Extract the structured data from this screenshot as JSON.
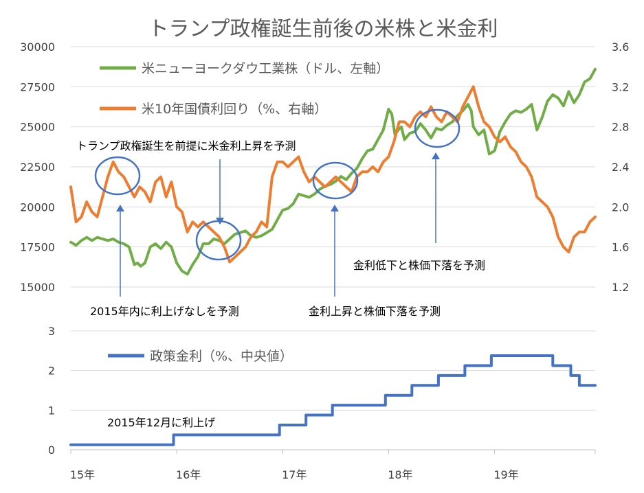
{
  "title": "トランプ政権誕生前後の米株と米金利",
  "colors": {
    "dow": "#70ad47",
    "yield": "#ed7d31",
    "policy": "#4472c4",
    "annotation": "#4472c4",
    "grid": "#d9d9d9",
    "text": "#404040"
  },
  "x_axis": {
    "min": 2015.0,
    "max": 2019.95,
    "tick_values": [
      2015,
      2016,
      2017,
      2018,
      2019
    ],
    "tick_labels": [
      "15年",
      "16年",
      "17年",
      "18年",
      "19年"
    ]
  },
  "top_chart": {
    "left_axis": {
      "min": 15000,
      "max": 30000,
      "ticks": [
        15000,
        17500,
        20000,
        22500,
        25000,
        27500,
        30000
      ],
      "tick_labels": [
        "15000",
        "17500",
        "20000",
        "22500",
        "25000",
        "27500",
        "30000"
      ]
    },
    "right_axis": {
      "min": 1.2,
      "max": 3.6,
      "ticks": [
        1.2,
        1.6,
        2.0,
        2.4,
        2.8,
        3.2,
        3.6
      ],
      "tick_labels": [
        "1.2",
        "1.6",
        "2.0",
        "2.4",
        "2.8",
        "3.2",
        "3.6"
      ]
    },
    "legend": [
      {
        "key": "dow",
        "label": "米ニューヨークダウ工業株（ドル、左軸）"
      },
      {
        "key": "yield",
        "label": "米10年国債利回り（%、右軸）"
      }
    ],
    "annotations": {
      "top_text": "トランプ政権誕生を前提に米金利上昇を予測",
      "left_bottom": "2015年内に利上げなしを予測",
      "mid_bottom": "金利上昇と株価下落を予測",
      "right_text": "金利低下と株価下落を予測"
    }
  },
  "bottom_chart": {
    "axis": {
      "min": 0,
      "max": 3,
      "ticks": [
        0,
        1,
        2,
        3
      ],
      "tick_labels": [
        "0",
        "1",
        "2",
        "3"
      ]
    },
    "legend": {
      "label": "政策金利（%、中央値）"
    },
    "annotation": "2015年12月に利上げ"
  },
  "chart_data": [
    {
      "type": "line",
      "title": "トランプ政権誕生前後の米株と米金利",
      "x_unit": "year",
      "grid": true,
      "legend_placement": "top-left",
      "series": [
        {
          "name": "米ニューヨークダウ工業株（ドル、左軸）",
          "axis": "left",
          "x": [
            2015.0,
            2015.05,
            2015.1,
            2015.15,
            2015.2,
            2015.25,
            2015.3,
            2015.35,
            2015.4,
            2015.45,
            2015.5,
            2015.55,
            2015.6,
            2015.63,
            2015.66,
            2015.7,
            2015.75,
            2015.8,
            2015.85,
            2015.9,
            2015.95,
            2016.0,
            2016.05,
            2016.1,
            2016.15,
            2016.2,
            2016.25,
            2016.3,
            2016.35,
            2016.4,
            2016.45,
            2016.5,
            2016.55,
            2016.6,
            2016.65,
            2016.7,
            2016.75,
            2016.8,
            2016.85,
            2016.9,
            2016.95,
            2017.0,
            2017.05,
            2017.1,
            2017.15,
            2017.2,
            2017.25,
            2017.3,
            2017.35,
            2017.4,
            2017.45,
            2017.5,
            2017.55,
            2017.6,
            2017.65,
            2017.7,
            2017.75,
            2017.8,
            2017.85,
            2017.9,
            2017.95,
            2018.0,
            2018.03,
            2018.06,
            2018.09,
            2018.12,
            2018.15,
            2018.2,
            2018.25,
            2018.3,
            2018.35,
            2018.4,
            2018.45,
            2018.5,
            2018.55,
            2018.6,
            2018.65,
            2018.7,
            2018.75,
            2018.78,
            2018.8,
            2018.85,
            2018.9,
            2018.95,
            2019.0,
            2019.05,
            2019.1,
            2019.15,
            2019.2,
            2019.25,
            2019.3,
            2019.35,
            2019.4,
            2019.45,
            2019.5,
            2019.55,
            2019.6,
            2019.65,
            2019.7,
            2019.75,
            2019.8,
            2019.85,
            2019.9,
            2019.95
          ],
          "values": [
            17800,
            17600,
            17900,
            18100,
            17900,
            18100,
            18000,
            17900,
            18000,
            17800,
            17700,
            17500,
            16400,
            16500,
            16300,
            16500,
            17500,
            17700,
            17400,
            17800,
            17500,
            16500,
            16000,
            15800,
            16400,
            16900,
            17700,
            17700,
            18000,
            17900,
            17700,
            18000,
            18300,
            18400,
            18500,
            18200,
            18100,
            18200,
            18400,
            18600,
            19200,
            19800,
            19900,
            20200,
            20800,
            20700,
            20600,
            20800,
            21100,
            21300,
            21400,
            21600,
            21900,
            21700,
            22100,
            22400,
            23000,
            23500,
            23600,
            24200,
            24800,
            26100,
            25800,
            24500,
            24800,
            25000,
            24200,
            24600,
            24700,
            25200,
            24800,
            24300,
            24900,
            24800,
            25100,
            25300,
            25700,
            26000,
            26400,
            26000,
            25000,
            24500,
            24800,
            23300,
            23500,
            24700,
            25300,
            25800,
            26000,
            25900,
            26100,
            26400,
            24800,
            25600,
            26600,
            27000,
            26800,
            26300,
            27200,
            26500,
            27000,
            27800,
            28000,
            28600
          ]
        },
        {
          "name": "米10年国債利回り（%、右軸）",
          "axis": "right",
          "x": [
            2015.0,
            2015.05,
            2015.1,
            2015.15,
            2015.2,
            2015.25,
            2015.3,
            2015.35,
            2015.4,
            2015.45,
            2015.5,
            2015.55,
            2015.6,
            2015.65,
            2015.7,
            2015.75,
            2015.8,
            2015.85,
            2015.9,
            2015.95,
            2016.0,
            2016.05,
            2016.1,
            2016.15,
            2016.2,
            2016.25,
            2016.3,
            2016.35,
            2016.4,
            2016.45,
            2016.5,
            2016.55,
            2016.6,
            2016.65,
            2016.7,
            2016.75,
            2016.8,
            2016.85,
            2016.9,
            2016.95,
            2017.0,
            2017.05,
            2017.1,
            2017.15,
            2017.2,
            2017.25,
            2017.3,
            2017.35,
            2017.4,
            2017.45,
            2017.5,
            2017.55,
            2017.6,
            2017.65,
            2017.7,
            2017.75,
            2017.8,
            2017.85,
            2017.9,
            2017.95,
            2018.0,
            2018.05,
            2018.1,
            2018.15,
            2018.2,
            2018.25,
            2018.3,
            2018.35,
            2018.4,
            2018.45,
            2018.5,
            2018.55,
            2018.6,
            2018.65,
            2018.7,
            2018.75,
            2018.8,
            2018.85,
            2018.9,
            2018.95,
            2019.0,
            2019.05,
            2019.1,
            2019.15,
            2019.2,
            2019.25,
            2019.3,
            2019.35,
            2019.4,
            2019.45,
            2019.5,
            2019.55,
            2019.6,
            2019.65,
            2019.7,
            2019.75,
            2019.8,
            2019.85,
            2019.9,
            2019.95
          ],
          "values": [
            2.2,
            1.85,
            1.9,
            2.05,
            1.95,
            1.9,
            2.1,
            2.3,
            2.45,
            2.35,
            2.3,
            2.2,
            2.1,
            2.2,
            2.15,
            2.05,
            2.25,
            2.3,
            2.1,
            2.25,
            2.0,
            1.95,
            1.75,
            1.85,
            1.8,
            1.85,
            1.8,
            1.75,
            1.7,
            1.6,
            1.45,
            1.5,
            1.55,
            1.6,
            1.7,
            1.75,
            1.85,
            1.8,
            2.3,
            2.45,
            2.45,
            2.4,
            2.45,
            2.5,
            2.35,
            2.25,
            2.3,
            2.25,
            2.2,
            2.25,
            2.3,
            2.25,
            2.2,
            2.15,
            2.3,
            2.35,
            2.35,
            2.4,
            2.35,
            2.45,
            2.5,
            2.65,
            2.85,
            2.85,
            2.8,
            2.9,
            2.95,
            2.9,
            3.0,
            2.9,
            2.85,
            2.95,
            2.9,
            2.85,
            3.0,
            3.1,
            3.2,
            3.0,
            2.85,
            2.8,
            2.7,
            2.65,
            2.7,
            2.6,
            2.55,
            2.45,
            2.4,
            2.3,
            2.1,
            2.05,
            2.0,
            1.9,
            1.7,
            1.6,
            1.55,
            1.7,
            1.75,
            1.75,
            1.85,
            1.9
          ]
        },
        {
          "name": "政策金利（%、中央値）",
          "axis": "bottom",
          "step": true,
          "x": [
            2015.0,
            2015.97,
            2016.97,
            2017.22,
            2017.47,
            2017.97,
            2018.22,
            2018.47,
            2018.72,
            2018.97,
            2019.55,
            2019.72,
            2019.8,
            2019.95
          ],
          "values": [
            0.125,
            0.375,
            0.625,
            0.875,
            1.125,
            1.375,
            1.625,
            1.875,
            2.125,
            2.375,
            2.125,
            1.875,
            1.625,
            1.625
          ]
        }
      ]
    }
  ]
}
